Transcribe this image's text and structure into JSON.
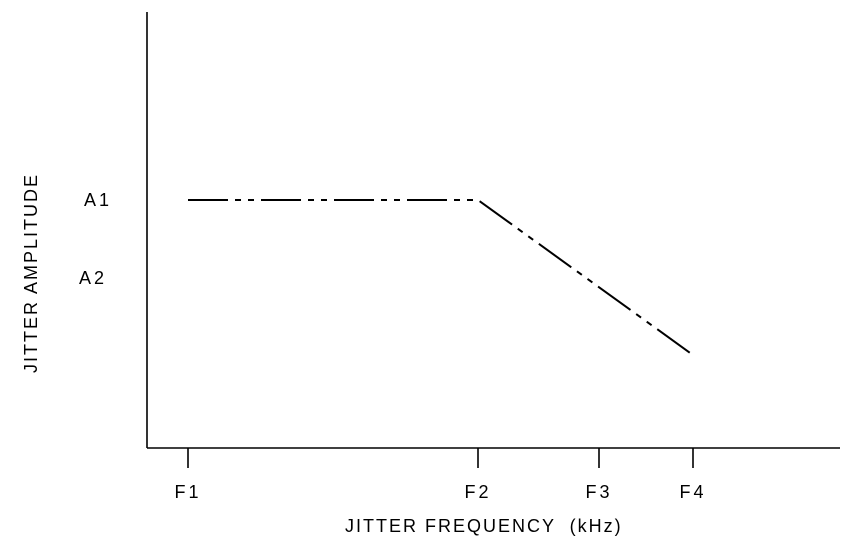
{
  "chart_data": {
    "type": "line",
    "title": "",
    "xlabel": "JITTER FREQUENCY  (kHz)",
    "ylabel": "JITTER AMPLITUDE",
    "x_ticks": [
      "F1",
      "F2",
      "F3",
      "F4"
    ],
    "y_ticks": [
      "A1",
      "A2"
    ],
    "grid": false,
    "line_style": "dash-dot-dot",
    "colors": {
      "line": "#000000",
      "axis": "#000000",
      "background": "#ffffff"
    },
    "series": [
      {
        "x": [
          "F1",
          "F2",
          "F4"
        ],
        "y": [
          "A1",
          "A1",
          "below A2"
        ]
      }
    ]
  }
}
